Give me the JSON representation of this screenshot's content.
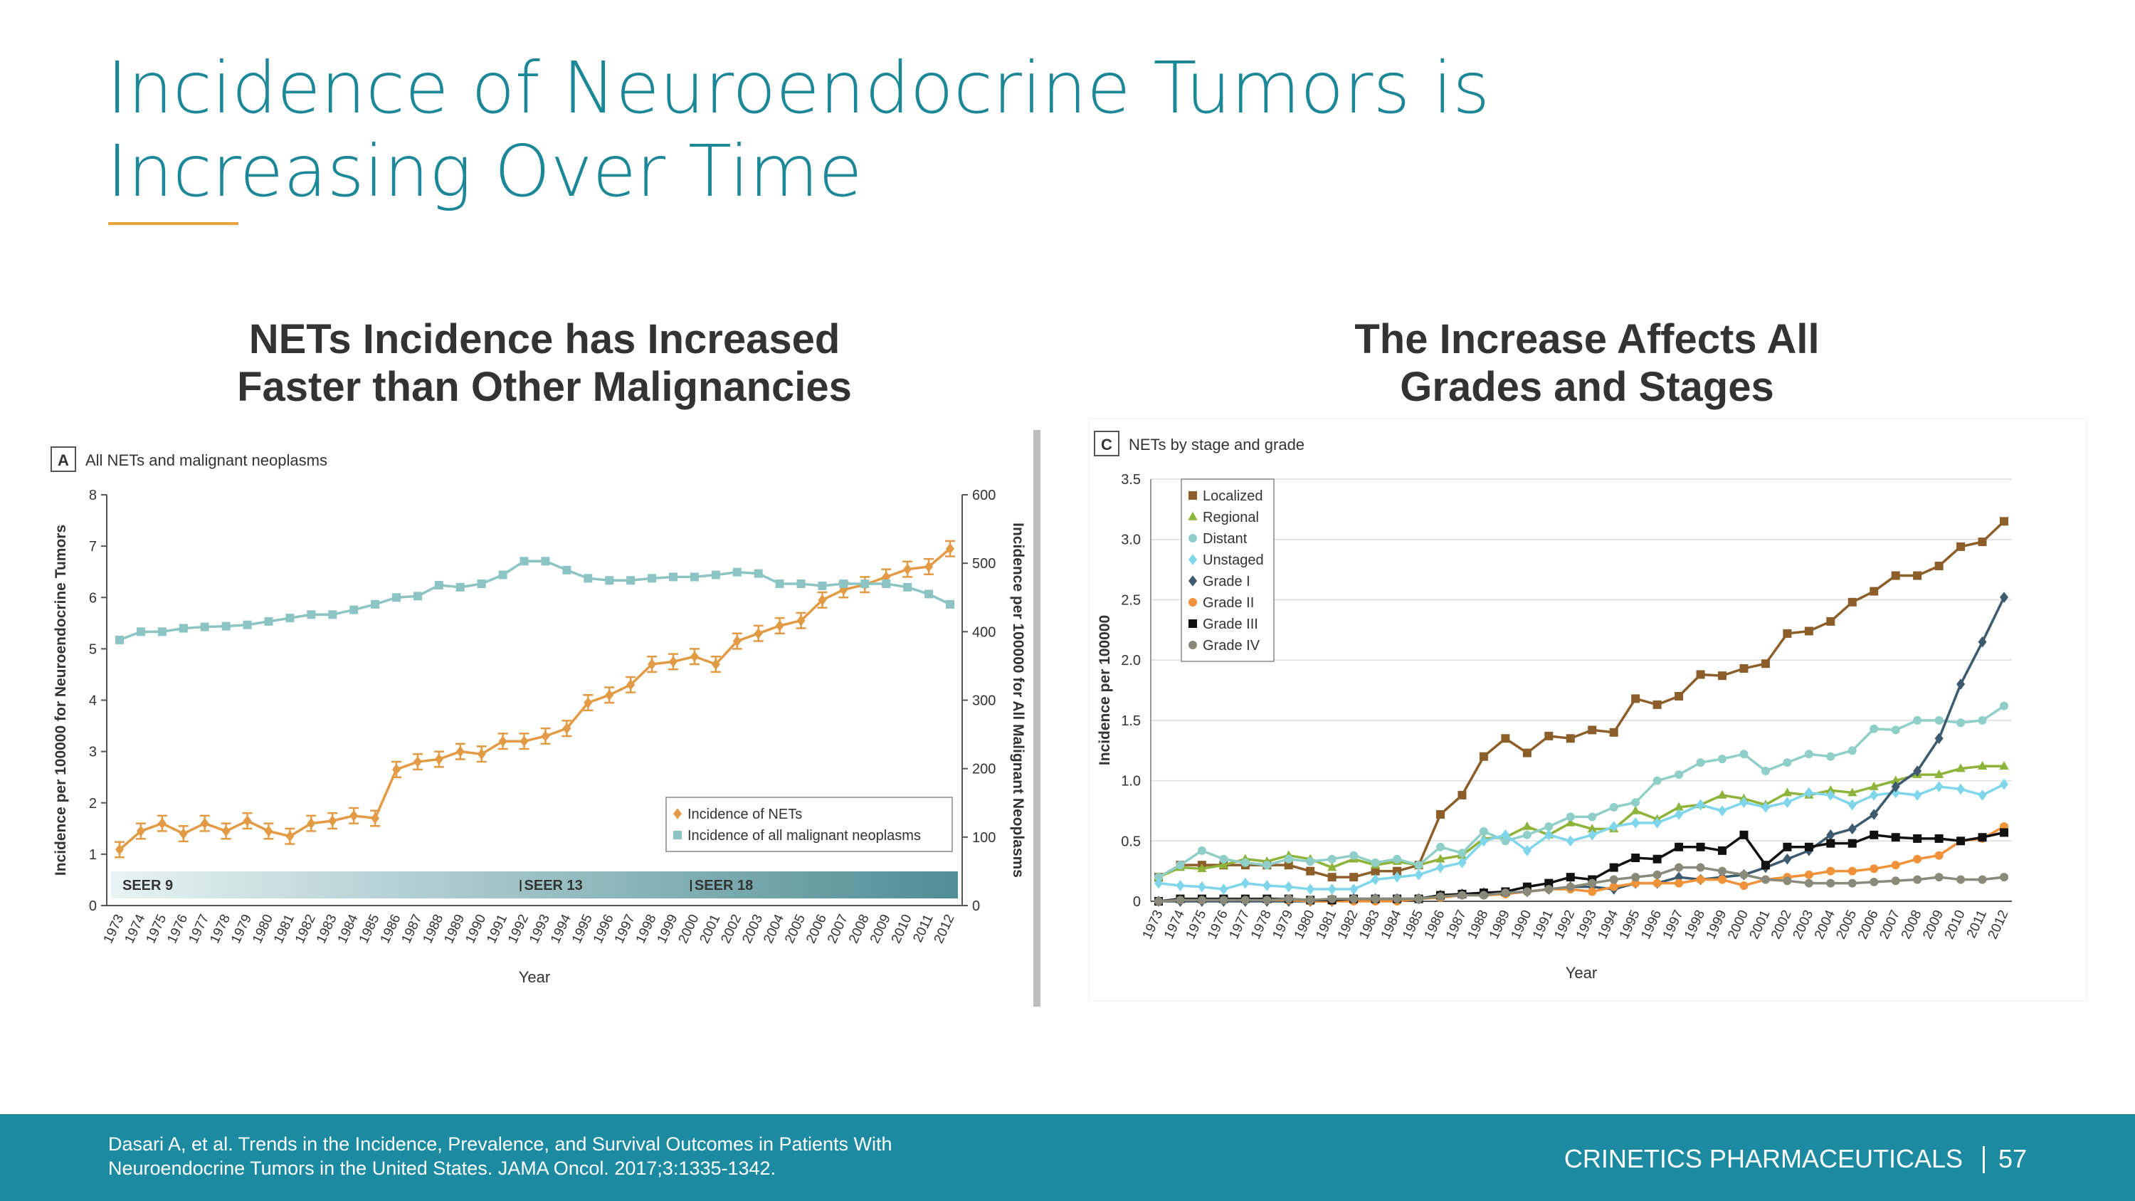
{
  "title": [
    "Incidence of Neuroendocrine Tumors is",
    "Increasing Over Time"
  ],
  "footer": {
    "citation": [
      "Dasari A, et al. Trends in the Incidence, Prevalence, and Survival Outcomes in Patients With",
      "Neuroendocrine Tumors in the United States. JAMA Oncol. 2017;3:1335-1342."
    ],
    "company": "CRINETICS PHARMACEUTICALS",
    "page": "57"
  },
  "chart_data": [
    {
      "type": "line",
      "heading": [
        "NETs Incidence has Increased",
        "Faster than Other Malignancies"
      ],
      "panel": "A",
      "title": "All NETs and malignant neoplasms",
      "xlabel": "Year",
      "ylabel": "Incidence per 100000 for Neuroendocrine Tumors",
      "y2label": "Incidence per 100000 for All Malignant Neoplasms",
      "categories": [
        "1973",
        "1974",
        "1975",
        "1976",
        "1977",
        "1978",
        "1979",
        "1980",
        "1981",
        "1982",
        "1983",
        "1984",
        "1985",
        "1986",
        "1987",
        "1988",
        "1989",
        "1990",
        "1991",
        "1992",
        "1993",
        "1994",
        "1995",
        "1996",
        "1997",
        "1998",
        "1999",
        "2000",
        "2001",
        "2002",
        "2003",
        "2004",
        "2005",
        "2006",
        "2007",
        "2008",
        "2009",
        "2010",
        "2011",
        "2012"
      ],
      "ylim": [
        0,
        8
      ],
      "yticks": [
        0,
        1,
        2,
        3,
        4,
        5,
        6,
        7,
        8
      ],
      "y2lim": [
        0,
        600
      ],
      "y2ticks": [
        0,
        100,
        200,
        300,
        400,
        500,
        600
      ],
      "grid": false,
      "legend": "lower right",
      "eras": [
        {
          "label": "SEER 9",
          "at": "1973"
        },
        {
          "label": "SEER 13",
          "at": "1992"
        },
        {
          "label": "SEER 18",
          "at": "2000"
        }
      ],
      "series": [
        {
          "name": "Incidence of NETs",
          "color": "#e39a45",
          "marker": "diamond",
          "values": [
            1.09,
            1.45,
            1.6,
            1.4,
            1.6,
            1.45,
            1.65,
            1.45,
            1.35,
            1.6,
            1.65,
            1.75,
            1.7,
            2.65,
            2.8,
            2.85,
            3.0,
            2.95,
            3.2,
            3.2,
            3.3,
            3.45,
            3.95,
            4.1,
            4.3,
            4.7,
            4.75,
            4.85,
            4.7,
            5.15,
            5.3,
            5.45,
            5.55,
            5.95,
            6.15,
            6.25,
            6.4,
            6.55,
            6.6,
            6.95
          ],
          "errors": [
            0.15,
            0.15,
            0.15,
            0.15,
            0.15,
            0.15,
            0.15,
            0.15,
            0.15,
            0.15,
            0.15,
            0.15,
            0.15,
            0.15,
            0.15,
            0.15,
            0.15,
            0.15,
            0.15,
            0.15,
            0.15,
            0.15,
            0.15,
            0.15,
            0.15,
            0.15,
            0.15,
            0.15,
            0.15,
            0.15,
            0.15,
            0.15,
            0.15,
            0.15,
            0.15,
            0.15,
            0.15,
            0.15,
            0.15,
            0.15
          ]
        },
        {
          "name": "Incidence of all malignant neoplasms",
          "color": "#8cc3c3",
          "marker": "square",
          "axis": "y2",
          "values": [
            388,
            400,
            400,
            405,
            407,
            408,
            410,
            415,
            420,
            425,
            425,
            432,
            440,
            450,
            452,
            468,
            465,
            470,
            483,
            503,
            503,
            490,
            478,
            475,
            475,
            478,
            480,
            480,
            483,
            487,
            485,
            470,
            470,
            467,
            470,
            470,
            470,
            465,
            455,
            440
          ]
        }
      ]
    },
    {
      "type": "line",
      "heading": [
        "The Increase Affects All",
        "Grades and Stages"
      ],
      "panel": "C",
      "title": "NETs by stage and grade",
      "xlabel": "Year",
      "ylabel": "Incidence per 100000",
      "categories": [
        "1973",
        "1974",
        "1975",
        "1976",
        "1977",
        "1978",
        "1979",
        "1980",
        "1981",
        "1982",
        "1983",
        "1984",
        "1985",
        "1986",
        "1987",
        "1988",
        "1989",
        "1990",
        "1991",
        "1992",
        "1993",
        "1994",
        "1995",
        "1996",
        "1997",
        "1998",
        "1999",
        "2000",
        "2001",
        "2002",
        "2003",
        "2004",
        "2005",
        "2006",
        "2007",
        "2008",
        "2009",
        "2010",
        "2011",
        "2012"
      ],
      "ylim": [
        0,
        3.5
      ],
      "yticks": [
        0,
        0.5,
        {
          "value": 1,
          "label": "1.0"
        },
        1.5,
        {
          "value": 2,
          "label": "2.0"
        },
        2.5,
        {
          "value": 3,
          "label": "3.0"
        },
        3.5
      ],
      "grid": true,
      "legend": "upper left",
      "series": [
        {
          "name": "Localized",
          "color": "#8b5e2a",
          "marker": "square",
          "values": [
            0.2,
            0.3,
            0.3,
            0.3,
            0.3,
            0.3,
            0.3,
            0.25,
            0.2,
            0.2,
            0.25,
            0.25,
            0.3,
            0.72,
            0.88,
            1.2,
            1.35,
            1.23,
            1.37,
            1.35,
            1.42,
            1.4,
            1.68,
            1.63,
            1.7,
            1.88,
            1.87,
            1.93,
            1.97,
            2.22,
            2.24,
            2.32,
            2.48,
            2.57,
            2.7,
            2.7,
            2.78,
            2.94,
            2.98,
            3.15
          ]
        },
        {
          "name": "Regional",
          "color": "#8db33a",
          "marker": "triangle",
          "values": [
            0.2,
            0.28,
            0.27,
            0.3,
            0.35,
            0.33,
            0.38,
            0.35,
            0.28,
            0.35,
            0.3,
            0.33,
            0.3,
            0.35,
            0.38,
            0.52,
            0.53,
            0.62,
            0.55,
            0.65,
            0.6,
            0.6,
            0.75,
            0.68,
            0.78,
            0.8,
            0.88,
            0.85,
            0.8,
            0.9,
            0.88,
            0.92,
            0.9,
            0.95,
            1.0,
            1.05,
            1.05,
            1.1,
            1.12,
            1.12
          ]
        },
        {
          "name": "Distant",
          "color": "#8fcfc8",
          "marker": "circle",
          "values": [
            0.2,
            0.3,
            0.42,
            0.35,
            0.32,
            0.3,
            0.35,
            0.33,
            0.35,
            0.38,
            0.32,
            0.35,
            0.3,
            0.45,
            0.4,
            0.58,
            0.5,
            0.55,
            0.62,
            0.7,
            0.7,
            0.78,
            0.82,
            1.0,
            1.05,
            1.15,
            1.18,
            1.22,
            1.08,
            1.15,
            1.22,
            1.2,
            1.25,
            1.43,
            1.42,
            1.5,
            1.5,
            1.48,
            1.5,
            1.62
          ]
        },
        {
          "name": "Unstaged",
          "color": "#7fd6ea",
          "marker": "diamond",
          "values": [
            0.15,
            0.13,
            0.12,
            0.1,
            0.15,
            0.13,
            0.12,
            0.1,
            0.1,
            0.1,
            0.18,
            0.2,
            0.22,
            0.28,
            0.32,
            0.5,
            0.55,
            0.42,
            0.55,
            0.5,
            0.55,
            0.62,
            0.65,
            0.65,
            0.72,
            0.8,
            0.75,
            0.82,
            0.78,
            0.82,
            0.9,
            0.88,
            0.8,
            0.88,
            0.9,
            0.88,
            0.95,
            0.93,
            0.88,
            0.97
          ]
        },
        {
          "name": "Grade I",
          "color": "#3e5a6e",
          "marker": "diamond",
          "values": [
            0,
            0,
            0,
            0,
            0,
            0,
            0,
            0,
            0,
            0.02,
            0.02,
            0.02,
            0.02,
            0.05,
            0.06,
            0.07,
            0.07,
            0.08,
            0.1,
            0.12,
            0.12,
            0.1,
            0.15,
            0.15,
            0.2,
            0.18,
            0.2,
            0.22,
            0.28,
            0.35,
            0.42,
            0.55,
            0.6,
            0.72,
            0.95,
            1.08,
            1.35,
            1.8,
            2.15,
            2.52
          ]
        },
        {
          "name": "Grade II",
          "color": "#f0923a",
          "marker": "circle",
          "values": [
            0,
            0.01,
            0.01,
            0.01,
            0.01,
            0.01,
            0.01,
            0,
            0,
            0,
            0,
            0,
            0.02,
            0.03,
            0.05,
            0.05,
            0.06,
            0.08,
            0.1,
            0.1,
            0.08,
            0.12,
            0.15,
            0.15,
            0.15,
            0.18,
            0.18,
            0.13,
            0.18,
            0.2,
            0.22,
            0.25,
            0.25,
            0.27,
            0.3,
            0.35,
            0.38,
            0.5,
            0.52,
            0.62
          ]
        },
        {
          "name": "Grade III",
          "color": "#111111",
          "marker": "square",
          "values": [
            0,
            0.02,
            0.02,
            0.02,
            0.02,
            0.02,
            0.02,
            0.01,
            0.01,
            0.02,
            0.02,
            0.02,
            0.02,
            0.05,
            0.06,
            0.07,
            0.08,
            0.12,
            0.15,
            0.2,
            0.18,
            0.28,
            0.36,
            0.35,
            0.45,
            0.45,
            0.42,
            0.55,
            0.3,
            0.45,
            0.45,
            0.48,
            0.48,
            0.55,
            0.53,
            0.52,
            0.52,
            0.5,
            0.53,
            0.57
          ]
        },
        {
          "name": "Grade IV",
          "color": "#8a8a7a",
          "marker": "circle",
          "values": [
            0,
            0.01,
            0.01,
            0.01,
            0.01,
            0.01,
            0.02,
            0.01,
            0.02,
            0.02,
            0.02,
            0.02,
            0.02,
            0.04,
            0.05,
            0.05,
            0.07,
            0.08,
            0.1,
            0.12,
            0.15,
            0.18,
            0.2,
            0.22,
            0.28,
            0.28,
            0.25,
            0.22,
            0.18,
            0.17,
            0.15,
            0.15,
            0.15,
            0.16,
            0.17,
            0.18,
            0.2,
            0.18,
            0.18,
            0.2
          ]
        }
      ]
    }
  ]
}
